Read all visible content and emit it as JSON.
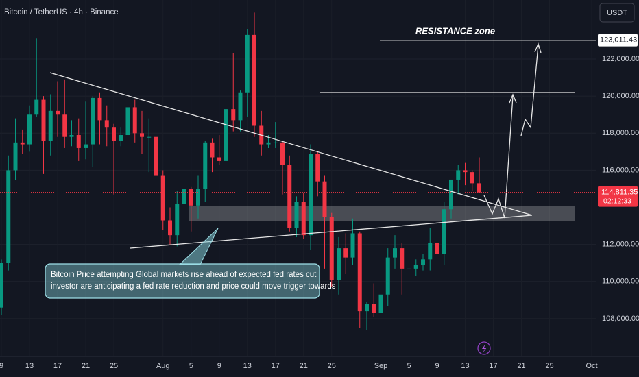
{
  "chart_data": {
    "type": "candlestick",
    "title": "Bitcoin / TetherUS · 4h · Binance",
    "currency": "USDT",
    "annotation_lines": [
      "Bitcoin Price attempting Global markets rise ahead of expected fed rates cut",
      "investor are anticipating a fed rate reduction and price could move trigger towards"
    ],
    "resistance_title": "RESISTANCE zone",
    "resistance_price": {
      "value": 123011.43,
      "label": "123,011.43"
    },
    "last_price": {
      "value": 114811.35,
      "label": "114,811.35"
    },
    "countdown": "02:12:33",
    "up_color": "#089981",
    "down_color": "#f23645",
    "ylim": [
      106150,
      125180
    ],
    "yticks": [
      {
        "value": 108000,
        "label": "108,000.00"
      },
      {
        "value": 110000,
        "label": "110,000.00"
      },
      {
        "value": 112000,
        "label": "112,000.00"
      },
      {
        "value": 116000,
        "label": "116,000.00"
      },
      {
        "value": 118000,
        "label": "118,000.00"
      },
      {
        "value": 120000,
        "label": "120,000.00"
      },
      {
        "value": 122000,
        "label": "122,000.00"
      }
    ],
    "xticks": [
      {
        "value": "Jul 9",
        "label": "9"
      },
      {
        "value": "Jul 13",
        "label": "13"
      },
      {
        "value": "Jul 17",
        "label": "17"
      },
      {
        "value": "Jul 21",
        "label": "21"
      },
      {
        "value": "Jul 25",
        "label": "25"
      },
      {
        "value": "Aug 1",
        "label": "Aug"
      },
      {
        "value": "Aug 5",
        "label": "5"
      },
      {
        "value": "Aug 9",
        "label": "9"
      },
      {
        "value": "Aug 13",
        "label": "13"
      },
      {
        "value": "Aug 17",
        "label": "17"
      },
      {
        "value": "Aug 21",
        "label": "21"
      },
      {
        "value": "Aug 25",
        "label": "25"
      },
      {
        "value": "Sep 1",
        "label": "Sep"
      },
      {
        "value": "Sep 5",
        "label": "5"
      },
      {
        "value": "Sep 9",
        "label": "9"
      },
      {
        "value": "Sep 13",
        "label": "13"
      },
      {
        "value": "Sep 17",
        "label": "17"
      },
      {
        "value": "Sep 21",
        "label": "21"
      },
      {
        "value": "Sep 25",
        "label": "25"
      },
      {
        "value": "Oct 1",
        "label": "Oct"
      }
    ],
    "x": [
      "Jul 9",
      "Jul 10",
      "Jul 11",
      "Jul 12",
      "Jul 13",
      "Jul 14",
      "Jul 15",
      "Jul 16",
      "Jul 17",
      "Jul 18",
      "Jul 19",
      "Jul 20",
      "Jul 21",
      "Jul 22",
      "Jul 23",
      "Jul 24",
      "Jul 25",
      "Jul 26",
      "Jul 27",
      "Jul 28",
      "Jul 29",
      "Jul 30",
      "Jul 31",
      "Aug 1",
      "Aug 2",
      "Aug 3",
      "Aug 4",
      "Aug 5",
      "Aug 6",
      "Aug 7",
      "Aug 8",
      "Aug 9",
      "Aug 10",
      "Aug 11",
      "Aug 12",
      "Aug 13",
      "Aug 14",
      "Aug 15",
      "Aug 16",
      "Aug 17",
      "Aug 18",
      "Aug 19",
      "Aug 20",
      "Aug 21",
      "Aug 22",
      "Aug 23",
      "Aug 24",
      "Aug 25",
      "Aug 26",
      "Aug 27",
      "Aug 28",
      "Aug 29",
      "Aug 30",
      "Aug 31",
      "Sep 1",
      "Sep 2",
      "Sep 3",
      "Sep 4",
      "Sep 5",
      "Sep 6",
      "Sep 7",
      "Sep 8",
      "Sep 9",
      "Sep 10",
      "Sep 11",
      "Sep 12",
      "Sep 13",
      "Sep 14",
      "Sep 15"
    ],
    "open": [
      108600,
      111000,
      116000,
      117500,
      117400,
      119000,
      119800,
      117600,
      119200,
      119000,
      117800,
      117900,
      117200,
      117400,
      119900,
      118700,
      118300,
      117600,
      117900,
      119400,
      118000,
      117800,
      117800,
      115700,
      113300,
      112500,
      114200,
      115000,
      114100,
      115000,
      117500,
      116700,
      116500,
      119300,
      118700,
      120200,
      123300,
      118400,
      117400,
      117500,
      117500,
      116300,
      112900,
      114300,
      112500,
      116900,
      115400,
      113500,
      110100,
      111800,
      111300,
      112600,
      108400,
      108800,
      108300,
      109300,
      111300,
      111800,
      110700,
      110700,
      110900,
      111200,
      112100,
      111500,
      113900,
      115500,
      116000,
      115900,
      115300
    ],
    "high": [
      111200,
      116800,
      118800,
      118200,
      119500,
      123100,
      120000,
      120100,
      120800,
      120900,
      118700,
      118800,
      119700,
      120000,
      120200,
      119500,
      118500,
      118300,
      119800,
      119800,
      119200,
      118800,
      118900,
      116000,
      114000,
      114900,
      115700,
      115100,
      115700,
      117600,
      117700,
      117900,
      119300,
      122300,
      120300,
      123600,
      124500,
      119200,
      117900,
      118600,
      117600,
      116800,
      114600,
      114800,
      117400,
      117000,
      115700,
      113700,
      112400,
      112600,
      113400,
      112700,
      108900,
      109900,
      109900,
      111800,
      112500,
      112100,
      113300,
      111200,
      111500,
      112900,
      113200,
      114300,
      115500,
      116300,
      116400,
      116000,
      116700
    ],
    "low": [
      108200,
      110600,
      115500,
      116900,
      117000,
      118900,
      115800,
      116800,
      117800,
      117200,
      117300,
      116500,
      116600,
      116200,
      117400,
      117300,
      114700,
      117300,
      117800,
      117500,
      116900,
      115900,
      115700,
      112800,
      112000,
      111900,
      114000,
      112700,
      113400,
      114300,
      115900,
      116300,
      116500,
      118100,
      118100,
      118900,
      117800,
      116800,
      117200,
      117200,
      114700,
      112700,
      112400,
      112300,
      111700,
      114600,
      110700,
      109700,
      109300,
      110400,
      110900,
      107500,
      107400,
      108100,
      107300,
      108700,
      110700,
      109300,
      110500,
      110300,
      110600,
      110600,
      110800,
      110900,
      113400,
      114700,
      115200,
      114900,
      114800
    ],
    "close": [
      111000,
      116000,
      117500,
      117400,
      119000,
      119800,
      117600,
      119200,
      119000,
      117800,
      117900,
      117200,
      117400,
      119900,
      118700,
      118300,
      117600,
      117900,
      119400,
      118000,
      117800,
      117800,
      115700,
      113300,
      112500,
      114200,
      115000,
      114100,
      115000,
      117500,
      116700,
      116500,
      119300,
      118700,
      120200,
      123300,
      118400,
      117400,
      117500,
      117500,
      116300,
      112900,
      114300,
      112500,
      116900,
      115400,
      113500,
      110100,
      111800,
      111300,
      112600,
      108400,
      108800,
      108300,
      109300,
      111300,
      111800,
      110700,
      110700,
      110900,
      111200,
      112100,
      111500,
      113900,
      115500,
      116000,
      115900,
      115300,
      114811.35
    ]
  }
}
